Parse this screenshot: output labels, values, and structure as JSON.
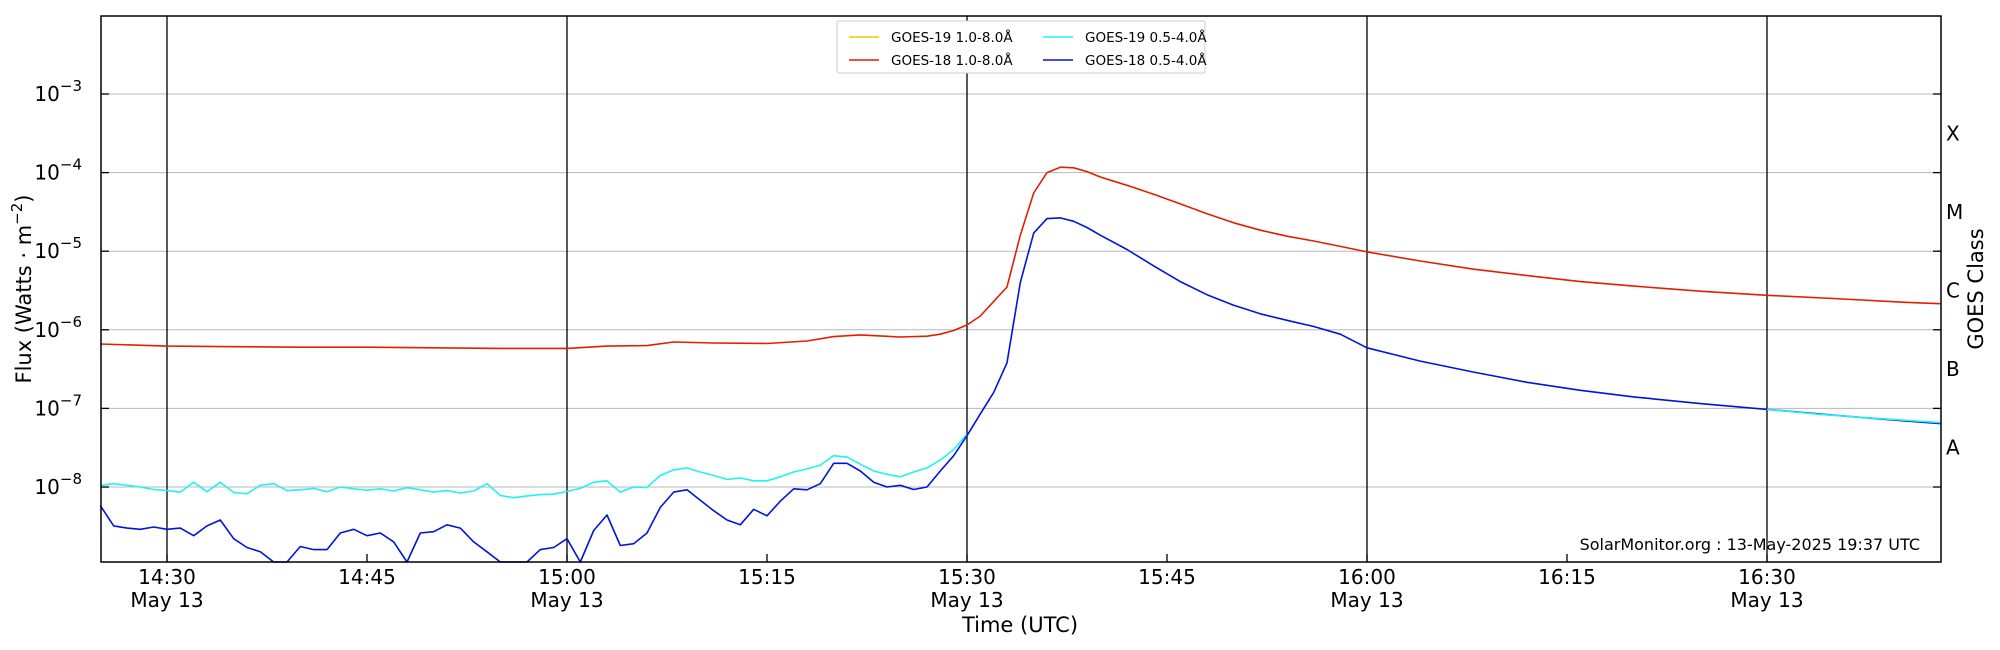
{
  "chart_data": {
    "type": "line",
    "xlabel": "Time (UTC)",
    "ylabel": "Flux (Watts · m",
    "ylabel_sup": "−2",
    "ylabel_end": ")",
    "right_label": "GOES Class",
    "watermark": "SolarMonitor.org : 13-May-2025 19:37 UTC",
    "y_scale": "log",
    "ylim": [
      1e-09,
      0.01
    ],
    "xlim_minutes": [
      "14:25",
      "16:44"
    ],
    "grid": "horizontal at decades",
    "legend_position": "top-center",
    "colors": {
      "goes19_long": "#f2c500",
      "goes18_long": "#e12000",
      "goes19_short": "#22f2f2",
      "goes18_short": "#0016d6"
    },
    "x_ticks": [
      {
        "time": "14:30",
        "line1": "14:30",
        "line2": "May 13",
        "vline": true
      },
      {
        "time": "14:45",
        "line1": "14:45",
        "line2": "",
        "vline": false
      },
      {
        "time": "15:00",
        "line1": "15:00",
        "line2": "May 13",
        "vline": true
      },
      {
        "time": "15:15",
        "line1": "15:15",
        "line2": "",
        "vline": false
      },
      {
        "time": "15:30",
        "line1": "15:30",
        "line2": "May 13",
        "vline": true
      },
      {
        "time": "15:45",
        "line1": "15:45",
        "line2": "",
        "vline": false
      },
      {
        "time": "16:00",
        "line1": "16:00",
        "line2": "May 13",
        "vline": true
      },
      {
        "time": "16:15",
        "line1": "16:15",
        "line2": "",
        "vline": false
      },
      {
        "time": "16:30",
        "line1": "16:30",
        "line2": "May 13",
        "vline": true
      }
    ],
    "y_ticks": [
      {
        "value": 1e-08,
        "exp": "−8"
      },
      {
        "value": 1e-07,
        "exp": "−7"
      },
      {
        "value": 1e-06,
        "exp": "−6"
      },
      {
        "value": 1e-05,
        "exp": "−5"
      },
      {
        "value": 0.0001,
        "exp": "−4"
      },
      {
        "value": 0.001,
        "exp": "−3"
      }
    ],
    "goes_classes": [
      {
        "label": "A",
        "value": 3.16e-08
      },
      {
        "label": "B",
        "value": 3.16e-07
      },
      {
        "label": "C",
        "value": 3.16e-06
      },
      {
        "label": "M",
        "value": 3.16e-05
      },
      {
        "label": "X",
        "value": 0.000316
      }
    ],
    "series": [
      {
        "name": "GOES-19 1.0-8.0Å",
        "color": "#f2c500",
        "points": []
      },
      {
        "name": "GOES-19 0.5-4.0Å",
        "color": "#22f2f2",
        "points": [
          [
            "14:25",
            1.05e-08
          ],
          [
            "14:26",
            1.1e-08
          ],
          [
            "14:27",
            1.05e-08
          ],
          [
            "14:28",
            1e-08
          ],
          [
            "14:29",
            9.3e-09
          ],
          [
            "14:30",
            9e-09
          ],
          [
            "14:31",
            8.6e-09
          ],
          [
            "14:32",
            1.15e-08
          ],
          [
            "14:33",
            8.7e-09
          ],
          [
            "14:34",
            1.15e-08
          ],
          [
            "14:35",
            8.5e-09
          ],
          [
            "14:36",
            8.2e-09
          ],
          [
            "14:37",
            1.05e-08
          ],
          [
            "14:38",
            1.1e-08
          ],
          [
            "14:39",
            9e-09
          ],
          [
            "14:40",
            9.2e-09
          ],
          [
            "14:41",
            9.6e-09
          ],
          [
            "14:42",
            8.7e-09
          ],
          [
            "14:43",
            1e-08
          ],
          [
            "14:44",
            9.5e-09
          ],
          [
            "14:45",
            9.1e-09
          ],
          [
            "14:46",
            9.5e-09
          ],
          [
            "14:47",
            8.9e-09
          ],
          [
            "14:48",
            9.8e-09
          ],
          [
            "14:49",
            9.2e-09
          ],
          [
            "14:50",
            8.6e-09
          ],
          [
            "14:51",
            9e-09
          ],
          [
            "14:52",
            8.4e-09
          ],
          [
            "14:53",
            8.9e-09
          ],
          [
            "14:54",
            1.1e-08
          ],
          [
            "14:55",
            7.8e-09
          ],
          [
            "14:56",
            7.3e-09
          ],
          [
            "14:57",
            7.7e-09
          ],
          [
            "14:58",
            8e-09
          ],
          [
            "14:59",
            8.1e-09
          ],
          [
            "15:00",
            8.8e-09
          ],
          [
            "15:01",
            9.6e-09
          ],
          [
            "15:02",
            1.15e-08
          ],
          [
            "15:03",
            1.2e-08
          ],
          [
            "15:04",
            8.6e-09
          ],
          [
            "15:05",
            1e-08
          ],
          [
            "15:06",
            9.9e-09
          ],
          [
            "15:07",
            1.4e-08
          ],
          [
            "15:08",
            1.65e-08
          ],
          [
            "15:09",
            1.75e-08
          ],
          [
            "15:10",
            1.55e-08
          ],
          [
            "15:11",
            1.4e-08
          ],
          [
            "15:12",
            1.25e-08
          ],
          [
            "15:13",
            1.3e-08
          ],
          [
            "15:14",
            1.2e-08
          ],
          [
            "15:15",
            1.2e-08
          ],
          [
            "15:16",
            1.35e-08
          ],
          [
            "15:17",
            1.55e-08
          ],
          [
            "15:18",
            1.7e-08
          ],
          [
            "15:19",
            1.9e-08
          ],
          [
            "15:20",
            2.5e-08
          ],
          [
            "15:21",
            2.4e-08
          ],
          [
            "15:22",
            1.95e-08
          ],
          [
            "15:23",
            1.6e-08
          ],
          [
            "15:24",
            1.45e-08
          ],
          [
            "15:25",
            1.35e-08
          ],
          [
            "15:26",
            1.55e-08
          ],
          [
            "15:27",
            1.75e-08
          ],
          [
            "15:28",
            2.2e-08
          ],
          [
            "15:29",
            3e-08
          ],
          [
            "15:30",
            4.7e-08
          ]
        ]
      },
      {
        "name": "GOES-18 1.0-8.0Å",
        "color": "#e12000",
        "points": [
          [
            "14:25",
            6.6e-07
          ],
          [
            "14:30",
            6.2e-07
          ],
          [
            "14:35",
            6.1e-07
          ],
          [
            "14:40",
            6e-07
          ],
          [
            "14:45",
            6e-07
          ],
          [
            "14:50",
            5.9e-07
          ],
          [
            "14:55",
            5.8e-07
          ],
          [
            "15:00",
            5.8e-07
          ],
          [
            "15:03",
            6.2e-07
          ],
          [
            "15:06",
            6.3e-07
          ],
          [
            "15:08",
            7e-07
          ],
          [
            "15:11",
            6.8e-07
          ],
          [
            "15:15",
            6.7e-07
          ],
          [
            "15:18",
            7.2e-07
          ],
          [
            "15:20",
            8.2e-07
          ],
          [
            "15:22",
            8.6e-07
          ],
          [
            "15:25",
            8.1e-07
          ],
          [
            "15:27",
            8.3e-07
          ],
          [
            "15:28",
            8.8e-07
          ],
          [
            "15:29",
            9.8e-07
          ],
          [
            "15:30",
            1.15e-06
          ],
          [
            "15:31",
            1.5e-06
          ],
          [
            "15:32",
            2.3e-06
          ],
          [
            "15:33",
            3.5e-06
          ],
          [
            "15:34",
            1.6e-05
          ],
          [
            "15:35",
            5.5e-05
          ],
          [
            "15:36",
            0.0001
          ],
          [
            "15:37",
            0.000117
          ],
          [
            "15:38",
            0.000115
          ],
          [
            "15:39",
            0.000103
          ],
          [
            "15:40",
            8.8e-05
          ],
          [
            "15:42",
            6.9e-05
          ],
          [
            "15:44",
            5.3e-05
          ],
          [
            "15:46",
            4e-05
          ],
          [
            "15:48",
            3e-05
          ],
          [
            "15:50",
            2.3e-05
          ],
          [
            "15:52",
            1.85e-05
          ],
          [
            "15:54",
            1.55e-05
          ],
          [
            "15:56",
            1.35e-05
          ],
          [
            "15:58",
            1.15e-05
          ],
          [
            "16:00",
            9.8e-06
          ],
          [
            "16:04",
            7.5e-06
          ],
          [
            "16:08",
            5.9e-06
          ],
          [
            "16:12",
            4.9e-06
          ],
          [
            "16:16",
            4.1e-06
          ],
          [
            "16:20",
            3.6e-06
          ],
          [
            "16:25",
            3.1e-06
          ],
          [
            "16:30",
            2.75e-06
          ],
          [
            "16:35",
            2.5e-06
          ],
          [
            "16:40",
            2.25e-06
          ],
          [
            "16:43",
            2.15e-06
          ]
        ]
      },
      {
        "name": "GOES-18 0.5-4.0Å",
        "color": "#0016d6",
        "points": [
          [
            "14:25",
            5.8e-09
          ],
          [
            "14:26",
            3.2e-09
          ],
          [
            "14:27",
            3e-09
          ],
          [
            "14:28",
            2.9e-09
          ],
          [
            "14:29",
            3.1e-09
          ],
          [
            "14:30",
            2.9e-09
          ],
          [
            "14:31",
            3e-09
          ],
          [
            "14:32",
            2.4e-09
          ],
          [
            "14:33",
            3.2e-09
          ],
          [
            "14:34",
            3.8e-09
          ],
          [
            "14:35",
            2.2e-09
          ],
          [
            "14:36",
            1.7e-09
          ],
          [
            "14:37",
            1.5e-09
          ],
          [
            "14:38",
            1.05e-09
          ],
          [
            "14:39",
            1e-09
          ],
          [
            "14:40",
            1.75e-09
          ],
          [
            "14:41",
            1.6e-09
          ],
          [
            "14:42",
            1.6e-09
          ],
          [
            "14:43",
            2.6e-09
          ],
          [
            "14:44",
            2.9e-09
          ],
          [
            "14:45",
            2.4e-09
          ],
          [
            "14:46",
            2.6e-09
          ],
          [
            "14:47",
            2e-09
          ],
          [
            "14:48",
            1e-09
          ],
          [
            "14:49",
            2.6e-09
          ],
          [
            "14:50",
            2.7e-09
          ],
          [
            "14:51",
            3.3e-09
          ],
          [
            "14:52",
            3e-09
          ],
          [
            "14:53",
            2e-09
          ],
          [
            "14:54",
            1.5e-09
          ],
          [
            "14:55",
            1e-09
          ],
          [
            "14:56",
            1e-09
          ],
          [
            "14:57",
            1.1e-09
          ],
          [
            "14:58",
            1.6e-09
          ],
          [
            "14:59",
            1.7e-09
          ],
          [
            "15:00",
            2.2e-09
          ],
          [
            "15:01",
            1e-09
          ],
          [
            "15:02",
            2.8e-09
          ],
          [
            "15:03",
            4.4e-09
          ],
          [
            "15:04",
            1.8e-09
          ],
          [
            "15:05",
            1.9e-09
          ],
          [
            "15:06",
            2.6e-09
          ],
          [
            "15:07",
            5.5e-09
          ],
          [
            "15:08",
            8.6e-09
          ],
          [
            "15:09",
            9.2e-09
          ],
          [
            "15:10",
            6.8e-09
          ],
          [
            "15:11",
            5e-09
          ],
          [
            "15:12",
            3.8e-09
          ],
          [
            "15:13",
            3.3e-09
          ],
          [
            "15:14",
            5.2e-09
          ],
          [
            "15:15",
            4.3e-09
          ],
          [
            "15:16",
            6.6e-09
          ],
          [
            "15:17",
            9.5e-09
          ],
          [
            "15:18",
            9.2e-09
          ],
          [
            "15:19",
            1.1e-08
          ],
          [
            "15:20",
            2e-08
          ],
          [
            "15:21",
            2e-08
          ],
          [
            "15:22",
            1.6e-08
          ],
          [
            "15:23",
            1.15e-08
          ],
          [
            "15:24",
            1e-08
          ],
          [
            "15:25",
            1.05e-08
          ],
          [
            "15:26",
            9.3e-09
          ],
          [
            "15:27",
            1e-08
          ],
          [
            "15:28",
            1.6e-08
          ],
          [
            "15:29",
            2.5e-08
          ],
          [
            "15:30",
            4.5e-08
          ],
          [
            "15:31",
            8.5e-08
          ],
          [
            "15:32",
            1.6e-07
          ],
          [
            "15:33",
            3.8e-07
          ],
          [
            "15:34",
            4e-06
          ],
          [
            "15:35",
            1.7e-05
          ],
          [
            "15:36",
            2.6e-05
          ],
          [
            "15:37",
            2.65e-05
          ],
          [
            "15:38",
            2.4e-05
          ],
          [
            "15:39",
            2e-05
          ],
          [
            "15:40",
            1.6e-05
          ],
          [
            "15:42",
            1.05e-05
          ],
          [
            "15:44",
            6.5e-06
          ],
          [
            "15:46",
            4.1e-06
          ],
          [
            "15:48",
            2.8e-06
          ],
          [
            "15:50",
            2.05e-06
          ],
          [
            "15:52",
            1.6e-06
          ],
          [
            "15:54",
            1.32e-06
          ],
          [
            "15:56",
            1.1e-06
          ],
          [
            "15:58",
            8.8e-07
          ],
          [
            "16:00",
            5.9e-07
          ],
          [
            "16:04",
            4e-07
          ],
          [
            "16:08",
            2.9e-07
          ],
          [
            "16:12",
            2.15e-07
          ],
          [
            "16:16",
            1.7e-07
          ],
          [
            "16:20",
            1.4e-07
          ],
          [
            "16:25",
            1.15e-07
          ],
          [
            "16:30",
            9.7e-08
          ],
          [
            "16:35",
            8.2e-08
          ],
          [
            "16:40",
            7e-08
          ],
          [
            "16:43",
            6.4e-08
          ]
        ]
      },
      {
        "name": "GOES-19 0.5-4.0Å (late)",
        "color": "#22f2f2",
        "legend": false,
        "points": [
          [
            "16:30",
            9.7e-08
          ],
          [
            "16:34",
            8.4e-08
          ],
          [
            "16:38",
            7.5e-08
          ],
          [
            "16:43",
            6.6e-08
          ]
        ]
      }
    ],
    "legend": [
      {
        "label": "GOES-19 1.0-8.0Å",
        "color": "#f2c500"
      },
      {
        "label": "GOES-18 1.0-8.0Å",
        "color": "#e12000"
      },
      {
        "label": "GOES-19 0.5-4.0Å",
        "color": "#22f2f2"
      },
      {
        "label": "GOES-18 0.5-4.0Å",
        "color": "#0016d6"
      }
    ]
  }
}
